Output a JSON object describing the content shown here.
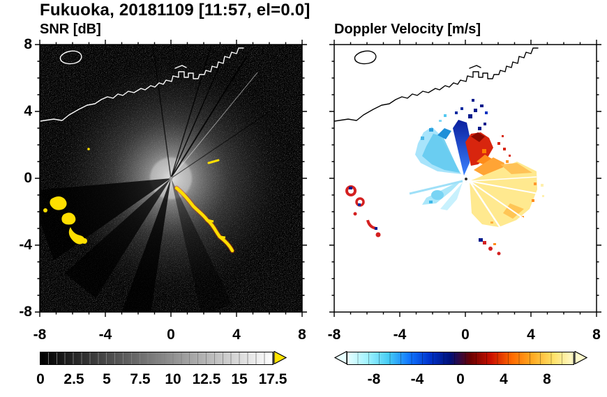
{
  "figure": {
    "title": "Fukuoka, 20181109 [11:57, el=0.0]",
    "station": "Fukuoka",
    "date": "20181109",
    "time": "11:57",
    "elevation": "el=0.0"
  },
  "chart_data": [
    {
      "type": "heatmap",
      "title": "SNR [dB]",
      "xlabel": "",
      "ylabel": "",
      "xlim": [
        -8,
        8
      ],
      "ylim": [
        -8,
        8
      ],
      "xticks": [
        "-8",
        "-4",
        "0",
        "4",
        "8"
      ],
      "yticks": [
        "8",
        "4",
        "0",
        "-4",
        "-8"
      ],
      "minor_tick_interval": 1,
      "background_color": "#000000",
      "grid": false,
      "colorbar": {
        "range": [
          0,
          17.5
        ],
        "tick_labels": [
          "0",
          "2.5",
          "5",
          "7.5",
          "10",
          "12.5",
          "15",
          "17.5"
        ],
        "gradient": [
          "#000000",
          "#ffffff"
        ],
        "over_arrow_color": "#ffe400",
        "segments": 28
      },
      "features": [
        {
          "name": "radar-site",
          "x": 0,
          "y": 0
        },
        {
          "name": "coastline",
          "color": "#ffffff",
          "desc": "coast and harbor structures crossing the upper part, small island upper-left"
        },
        {
          "name": "clutter-halo",
          "desc": "bright gray SNR halo around the radar out to ~3 km with dark blocked wedges toward SW and S and thin shadow rays toward NNE"
        },
        {
          "name": "noise-speckle",
          "desc": "faint gray random speckle filling the black domain"
        },
        {
          "name": "high-snr-arc",
          "color": "#ffdf00",
          "desc": "yellow arc echo from about (0.4,-0.6) to (3.8,-4.3)"
        },
        {
          "name": "high-snr-patches",
          "color": "#ffdf00",
          "desc": "yellow patches near (-7.2,-1.2), (-6.5,-2.2), (-6.0,-3.0), (-5.2,-3.6)"
        }
      ]
    },
    {
      "type": "heatmap",
      "title": "Doppler Velocity [m/s]",
      "xlabel": "",
      "ylabel": "",
      "xlim": [
        -8,
        8
      ],
      "ylim": [
        -8,
        8
      ],
      "xticks": [
        "-8",
        "-4",
        "0",
        "4",
        "8"
      ],
      "yticks": [
        "8",
        "4",
        "0",
        "-4",
        "-8"
      ],
      "minor_tick_interval": 1,
      "background_color": "#ffffff",
      "grid": false,
      "colorbar": {
        "range": [
          -10.5,
          10.5
        ],
        "tick_labels": [
          "-8",
          "-4",
          "0",
          "4",
          "8"
        ],
        "gradient": [
          "#e8ffff",
          "#9ef2ff",
          "#45ccf5",
          "#1177ff",
          "#0033cc",
          "#001078",
          "#6b0000",
          "#cc1100",
          "#ff6a00",
          "#ffaa22",
          "#ffe066",
          "#fffbcc"
        ],
        "under_arrow_color": "#e8ffff",
        "over_arrow_color": "#fffbcc"
      },
      "features": [
        {
          "name": "radar-site",
          "x": 0,
          "y": 0
        },
        {
          "name": "coastline",
          "color": "#000000"
        },
        {
          "name": "negative-velocity-fan",
          "colors": [
            "#a8e4fb",
            "#5fc9ef",
            "#1e90d8"
          ],
          "desc": "cyan/light-blue echoes NW of radar, azimuth ~115-160 deg, range to ~3.2"
        },
        {
          "name": "strong-negative-wedge",
          "colors": [
            "#3b82ff",
            "#0a1f9e"
          ],
          "desc": "blue to navy wedge just N of radar with navy specks out to (1,4)"
        },
        {
          "name": "positive-cluster-ne",
          "colors": [
            "#d8250e",
            "#8c0a00",
            "#ff8c1a"
          ],
          "desc": "red/orange cluster NNE of radar around (0.5,2)-(2,2.8)"
        },
        {
          "name": "positive-fan-ese",
          "colors": [
            "#ffe98f",
            "#ffbe50"
          ],
          "desc": "broad pale-yellow fan E to SSE of radar out to ~4.5 with orange speckle and white ray gaps"
        },
        {
          "name": "negative-streaks-sw",
          "colors": [
            "#a5e6fa"
          ],
          "desc": "cyan streaks toward WSW below the radar"
        },
        {
          "name": "isolated-echoes-west",
          "colors": [
            "#d42020",
            "#001a8c"
          ],
          "desc": "small red/navy echoes near (-6.9,-1.1), (-6.3,-1.9), (-5.8,-2.9), (-5.1,-3.5)"
        },
        {
          "name": "isolated-echoes-south",
          "colors": [
            "#d42020",
            "#001a8c"
          ],
          "desc": "small echoes near (1,-3.7), (1.7,-4.2), (2.2,-4.6)"
        }
      ]
    }
  ]
}
